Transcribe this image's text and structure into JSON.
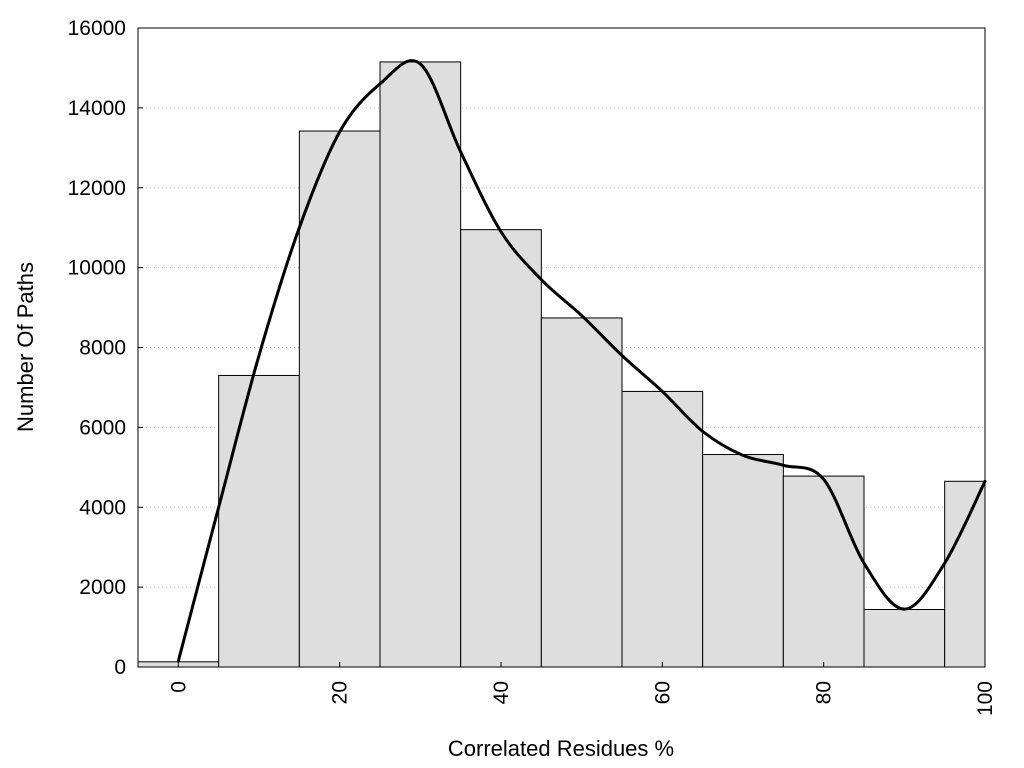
{
  "chart_data": {
    "type": "bar",
    "title": "",
    "xlabel": "Correlated Residues %",
    "ylabel": "Number Of Paths",
    "xlim": [
      -5,
      100
    ],
    "ylim": [
      0,
      16000
    ],
    "grid": true,
    "bin_width": 10,
    "x_ticks": [
      0,
      20,
      40,
      60,
      80,
      100
    ],
    "y_ticks": [
      0,
      2000,
      4000,
      6000,
      8000,
      10000,
      12000,
      14000,
      16000
    ],
    "bins": [
      {
        "center": 0,
        "value": 130
      },
      {
        "center": 10,
        "value": 7300
      },
      {
        "center": 20,
        "value": 13420
      },
      {
        "center": 30,
        "value": 15150
      },
      {
        "center": 40,
        "value": 10950
      },
      {
        "center": 50,
        "value": 8740
      },
      {
        "center": 60,
        "value": 6900
      },
      {
        "center": 70,
        "value": 5320
      },
      {
        "center": 80,
        "value": 4780
      },
      {
        "center": 90,
        "value": 1440
      },
      {
        "center": 100,
        "value": 4650
      }
    ],
    "curve": {
      "x": [
        0,
        5,
        10,
        15,
        20,
        25,
        30,
        35,
        40,
        45,
        50,
        55,
        60,
        65,
        70,
        75,
        80,
        85,
        90,
        95,
        100
      ],
      "y": [
        150,
        4000,
        7800,
        11000,
        13400,
        14600,
        15100,
        12900,
        10900,
        9700,
        8800,
        7800,
        6900,
        5900,
        5300,
        5050,
        4700,
        2600,
        1450,
        2600,
        4650
      ]
    }
  }
}
